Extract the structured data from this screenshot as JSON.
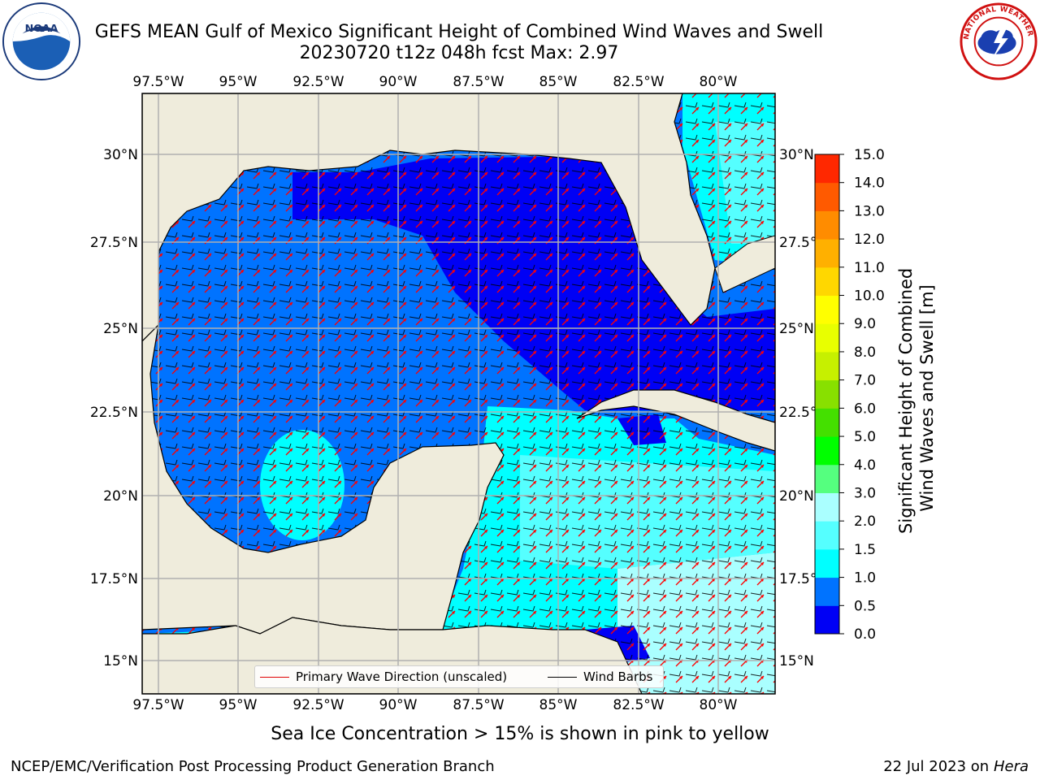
{
  "header": {
    "title_line1": "GEFS MEAN Gulf of Mexico Significant Height of Combined Wind Waves and Swell",
    "title_line2": "20230720 t12z 048h fcst   Max: 2.97"
  },
  "logos": {
    "left": {
      "name": "noaa-logo",
      "text": "NOAA"
    },
    "right": {
      "name": "nws-logo",
      "text": "NATIONAL WEATHER SERVICE"
    }
  },
  "map": {
    "lon_labels": [
      "97.5°W",
      "95°W",
      "92.5°W",
      "90°W",
      "87.5°W",
      "85°W",
      "82.5°W",
      "80°W"
    ],
    "lat_labels_left": [
      "30°N",
      "27.5°N",
      "25°N",
      "22.5°N",
      "20°N",
      "17.5°N",
      "15°N"
    ],
    "lat_labels_right": [
      "30°N",
      "27.5°",
      "25°N",
      "22.5°",
      "20°N",
      "17.5°",
      "15°N"
    ],
    "extent": {
      "lon_min": -98,
      "lon_max": -78.2,
      "lat_min": 14.0,
      "lat_max": 31.8
    },
    "colors": {
      "land": "#efecdc",
      "ocean_0_0p5": "#0000f5",
      "ocean_0p5_1": "#0073ff",
      "ocean_1_1p5": "#00ffff",
      "ocean_1p5_2": "#55ffff",
      "ocean_2_2p5": "#aaffff",
      "wave_arrow": "#ff0000",
      "wind_barb": "#000000",
      "grid": "#b0b0b0"
    }
  },
  "colorbar": {
    "label": "Significant Height of Combined\nWind Waves and Swell [m]",
    "ticks": [
      "0.0",
      "0.5",
      "1.0",
      "1.5",
      "2.0",
      "3.0",
      "4.0",
      "5.0",
      "6.0",
      "7.0",
      "8.0",
      "9.0",
      "10.0",
      "11.0",
      "12.0",
      "13.0",
      "14.0",
      "15.0"
    ],
    "colors": [
      "#0000f5",
      "#0073ff",
      "#00ffff",
      "#55ffff",
      "#aaffff",
      "#55ff7f",
      "#00ff00",
      "#44e000",
      "#88e000",
      "#c6f000",
      "#e8ff00",
      "#ffff00",
      "#ffd700",
      "#ffb000",
      "#ff8c00",
      "#ff5a00",
      "#ff2800"
    ]
  },
  "legend": {
    "wave": "Primary Wave Direction (unscaled)",
    "wind": "Wind Barbs",
    "wave_color": "#e00000",
    "wind_color": "#000000"
  },
  "notes": {
    "sea_ice": "Sea Ice Concentration > 15% is shown in pink to yellow"
  },
  "footer": {
    "left": "NCEP/EMC/Verification Post Processing Product Generation Branch",
    "right_date": "22 Jul 2023 on ",
    "right_system": "Hera"
  }
}
